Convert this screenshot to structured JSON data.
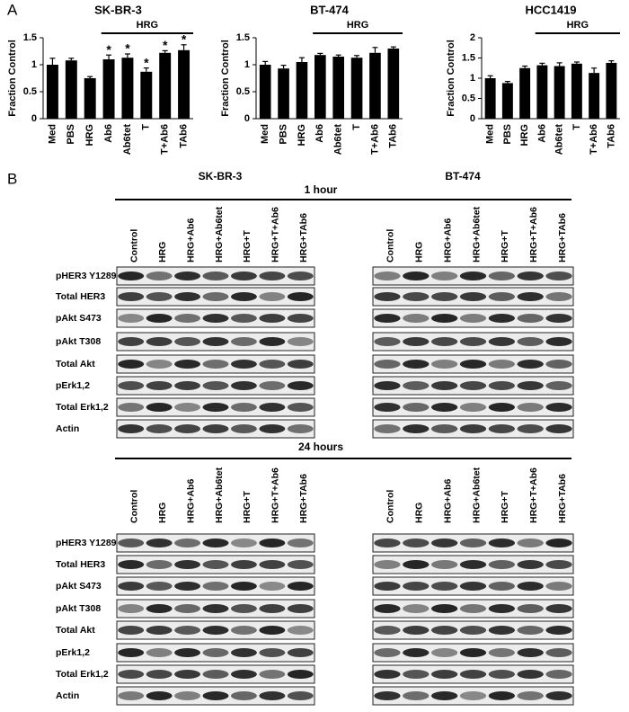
{
  "panel_a_label": "A",
  "chart_data": [
    {
      "type": "bar",
      "title": "SK-BR-3",
      "ylabel": "Fraction Control",
      "categories": [
        "Med",
        "PBS",
        "HRG",
        "Ab6",
        "Ab6tet",
        "T",
        "T+Ab6",
        "TAb6"
      ],
      "values": [
        1.0,
        1.08,
        0.75,
        1.1,
        1.13,
        0.87,
        1.22,
        1.27
      ],
      "errors": [
        0.12,
        0.04,
        0.03,
        0.08,
        0.07,
        0.07,
        0.04,
        0.1
      ],
      "significance": [
        null,
        null,
        null,
        "*",
        "*",
        "*",
        "*",
        "*"
      ],
      "bracket_label": "HRG",
      "color": "#000000",
      "ylim": [
        0,
        1.5
      ],
      "yticks": [
        0,
        0.5,
        1,
        1.5
      ]
    },
    {
      "type": "bar",
      "title": "BT-474",
      "ylabel": "Fraction Control",
      "categories": [
        "Med",
        "PBS",
        "HRG",
        "Ab6",
        "Ab6tet",
        "T",
        "T+Ab6",
        "TAb6"
      ],
      "values": [
        1.0,
        0.93,
        1.05,
        1.18,
        1.15,
        1.13,
        1.22,
        1.3
      ],
      "errors": [
        0.06,
        0.06,
        0.08,
        0.03,
        0.03,
        0.04,
        0.1,
        0.03
      ],
      "bracket_label": "HRG",
      "color": "#000000",
      "ylim": [
        0,
        1.5
      ],
      "yticks": [
        0,
        0.5,
        1,
        1.5
      ]
    },
    {
      "type": "bar",
      "title": "HCC1419",
      "ylabel": "Fraction Control",
      "categories": [
        "Med",
        "PBS",
        "HRG",
        "Ab6",
        "Ab6tet",
        "T",
        "T+Ab6",
        "TAb6"
      ],
      "values": [
        1.0,
        0.88,
        1.25,
        1.32,
        1.3,
        1.36,
        1.13,
        1.38
      ],
      "errors": [
        0.06,
        0.04,
        0.05,
        0.05,
        0.08,
        0.04,
        0.12,
        0.05
      ],
      "bracket_label": "HRG",
      "color": "#000000",
      "ylim": [
        0,
        2
      ],
      "yticks": [
        0,
        0.5,
        1,
        1.5,
        2
      ]
    }
  ],
  "panel_b": {
    "label": "B",
    "cell_lines": [
      "SK-BR-3",
      "BT-474"
    ],
    "timepoints": [
      "1 hour",
      "24 hours"
    ],
    "lanes": [
      "Control",
      "HRG",
      "HRG+Ab6",
      "HRG+Ab6tet",
      "HRG+T",
      "HRG+T+Ab6",
      "HRG+TAb6"
    ],
    "proteins": [
      "pHER3 Y1289",
      "Total HER3",
      "pAkt S473",
      "pAkt T308",
      "Total Akt",
      "pErk1,2",
      "Total Erk1,2",
      "Actin"
    ]
  }
}
